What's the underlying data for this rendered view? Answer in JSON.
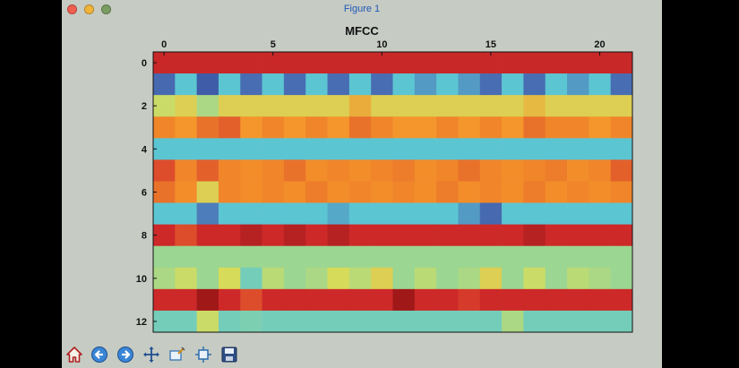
{
  "window": {
    "title": "Figure 1",
    "traffic_lights": [
      {
        "name": "close",
        "color": "#ef5f4f"
      },
      {
        "name": "minimize",
        "color": "#f0b43a"
      },
      {
        "name": "zoom",
        "color": "#7a9e62"
      }
    ]
  },
  "toolbar": {
    "tools": [
      {
        "name": "home-icon"
      },
      {
        "name": "back-arrow-icon"
      },
      {
        "name": "forward-arrow-icon"
      },
      {
        "name": "pan-icon"
      },
      {
        "name": "zoom-rect-icon"
      },
      {
        "name": "subplots-config-icon"
      },
      {
        "name": "save-icon"
      }
    ]
  },
  "chart_data": {
    "type": "heatmap",
    "title": "MFCC",
    "xlabel": "",
    "ylabel": "",
    "x_ticks": [
      0,
      5,
      10,
      15,
      20
    ],
    "y_ticks": [
      0,
      2,
      4,
      6,
      8,
      10,
      12
    ],
    "xlim": [
      -0.5,
      21.5
    ],
    "ylim": [
      12.5,
      -0.5
    ],
    "x_axis_position": "top",
    "colormap": "jet",
    "vmin": -1.0,
    "vmax": 1.0,
    "n_rows": 13,
    "n_cols": 22,
    "values": [
      [
        0.86,
        0.86,
        0.86,
        0.86,
        0.86,
        0.86,
        0.86,
        0.86,
        0.86,
        0.86,
        0.86,
        0.86,
        0.86,
        0.86,
        0.86,
        0.86,
        0.86,
        0.86,
        0.86,
        0.86,
        0.86,
        0.86
      ],
      [
        -0.65,
        -0.3,
        -0.75,
        -0.3,
        -0.62,
        -0.3,
        -0.62,
        -0.3,
        -0.62,
        -0.3,
        -0.62,
        -0.3,
        -0.45,
        -0.3,
        -0.45,
        -0.62,
        -0.3,
        -0.62,
        -0.3,
        -0.45,
        -0.3,
        -0.62
      ],
      [
        0.2,
        0.3,
        0.1,
        0.3,
        0.3,
        0.3,
        0.3,
        0.3,
        0.3,
        0.45,
        0.3,
        0.3,
        0.3,
        0.3,
        0.3,
        0.3,
        0.3,
        0.4,
        0.3,
        0.3,
        0.3,
        0.3
      ],
      [
        0.6,
        0.55,
        0.65,
        0.7,
        0.55,
        0.6,
        0.55,
        0.6,
        0.55,
        0.65,
        0.6,
        0.55,
        0.55,
        0.6,
        0.55,
        0.6,
        0.55,
        0.65,
        0.6,
        0.6,
        0.55,
        0.6
      ],
      [
        -0.3,
        -0.3,
        -0.3,
        -0.3,
        -0.3,
        -0.3,
        -0.3,
        -0.3,
        -0.3,
        -0.3,
        -0.3,
        -0.3,
        -0.3,
        -0.3,
        -0.3,
        -0.3,
        -0.3,
        -0.3,
        -0.3,
        -0.3,
        -0.3,
        -0.3
      ],
      [
        0.75,
        0.6,
        0.7,
        0.6,
        0.58,
        0.6,
        0.65,
        0.58,
        0.6,
        0.58,
        0.6,
        0.62,
        0.58,
        0.6,
        0.65,
        0.6,
        0.58,
        0.6,
        0.62,
        0.58,
        0.6,
        0.7
      ],
      [
        0.65,
        0.58,
        0.3,
        0.6,
        0.58,
        0.6,
        0.58,
        0.62,
        0.58,
        0.6,
        0.58,
        0.6,
        0.58,
        0.62,
        0.58,
        0.6,
        0.58,
        0.62,
        0.58,
        0.6,
        0.58,
        0.6
      ],
      [
        -0.3,
        -0.3,
        -0.55,
        -0.3,
        -0.3,
        -0.3,
        -0.3,
        -0.3,
        -0.4,
        -0.3,
        -0.3,
        -0.3,
        -0.3,
        -0.3,
        -0.45,
        -0.65,
        -0.3,
        -0.3,
        -0.3,
        -0.3,
        -0.3,
        -0.3
      ],
      [
        0.85,
        0.75,
        0.85,
        0.85,
        0.9,
        0.85,
        0.9,
        0.85,
        0.9,
        0.85,
        0.85,
        0.85,
        0.85,
        0.85,
        0.85,
        0.85,
        0.85,
        0.9,
        0.85,
        0.85,
        0.85,
        0.85
      ],
      [
        0.05,
        0.05,
        0.05,
        0.05,
        0.05,
        0.05,
        0.05,
        0.05,
        0.05,
        0.05,
        0.05,
        0.05,
        0.05,
        0.05,
        0.05,
        0.05,
        0.05,
        0.05,
        0.05,
        0.05,
        0.05,
        0.05
      ],
      [
        0.1,
        0.2,
        0.05,
        0.25,
        -0.15,
        0.15,
        0.05,
        0.1,
        0.25,
        0.15,
        0.3,
        0.05,
        0.15,
        0.05,
        0.1,
        0.3,
        0.05,
        0.2,
        0.05,
        0.15,
        0.1,
        0.05
      ],
      [
        0.85,
        0.85,
        0.95,
        0.85,
        0.75,
        0.85,
        0.85,
        0.85,
        0.85,
        0.85,
        0.85,
        0.95,
        0.85,
        0.85,
        0.8,
        0.85,
        0.85,
        0.85,
        0.85,
        0.85,
        0.85,
        0.85
      ],
      [
        -0.15,
        -0.15,
        0.2,
        -0.15,
        -0.1,
        -0.15,
        -0.15,
        -0.15,
        -0.15,
        -0.15,
        -0.15,
        -0.15,
        -0.15,
        -0.15,
        -0.15,
        -0.15,
        0.1,
        -0.15,
        -0.15,
        -0.15,
        -0.15,
        -0.15
      ]
    ]
  }
}
